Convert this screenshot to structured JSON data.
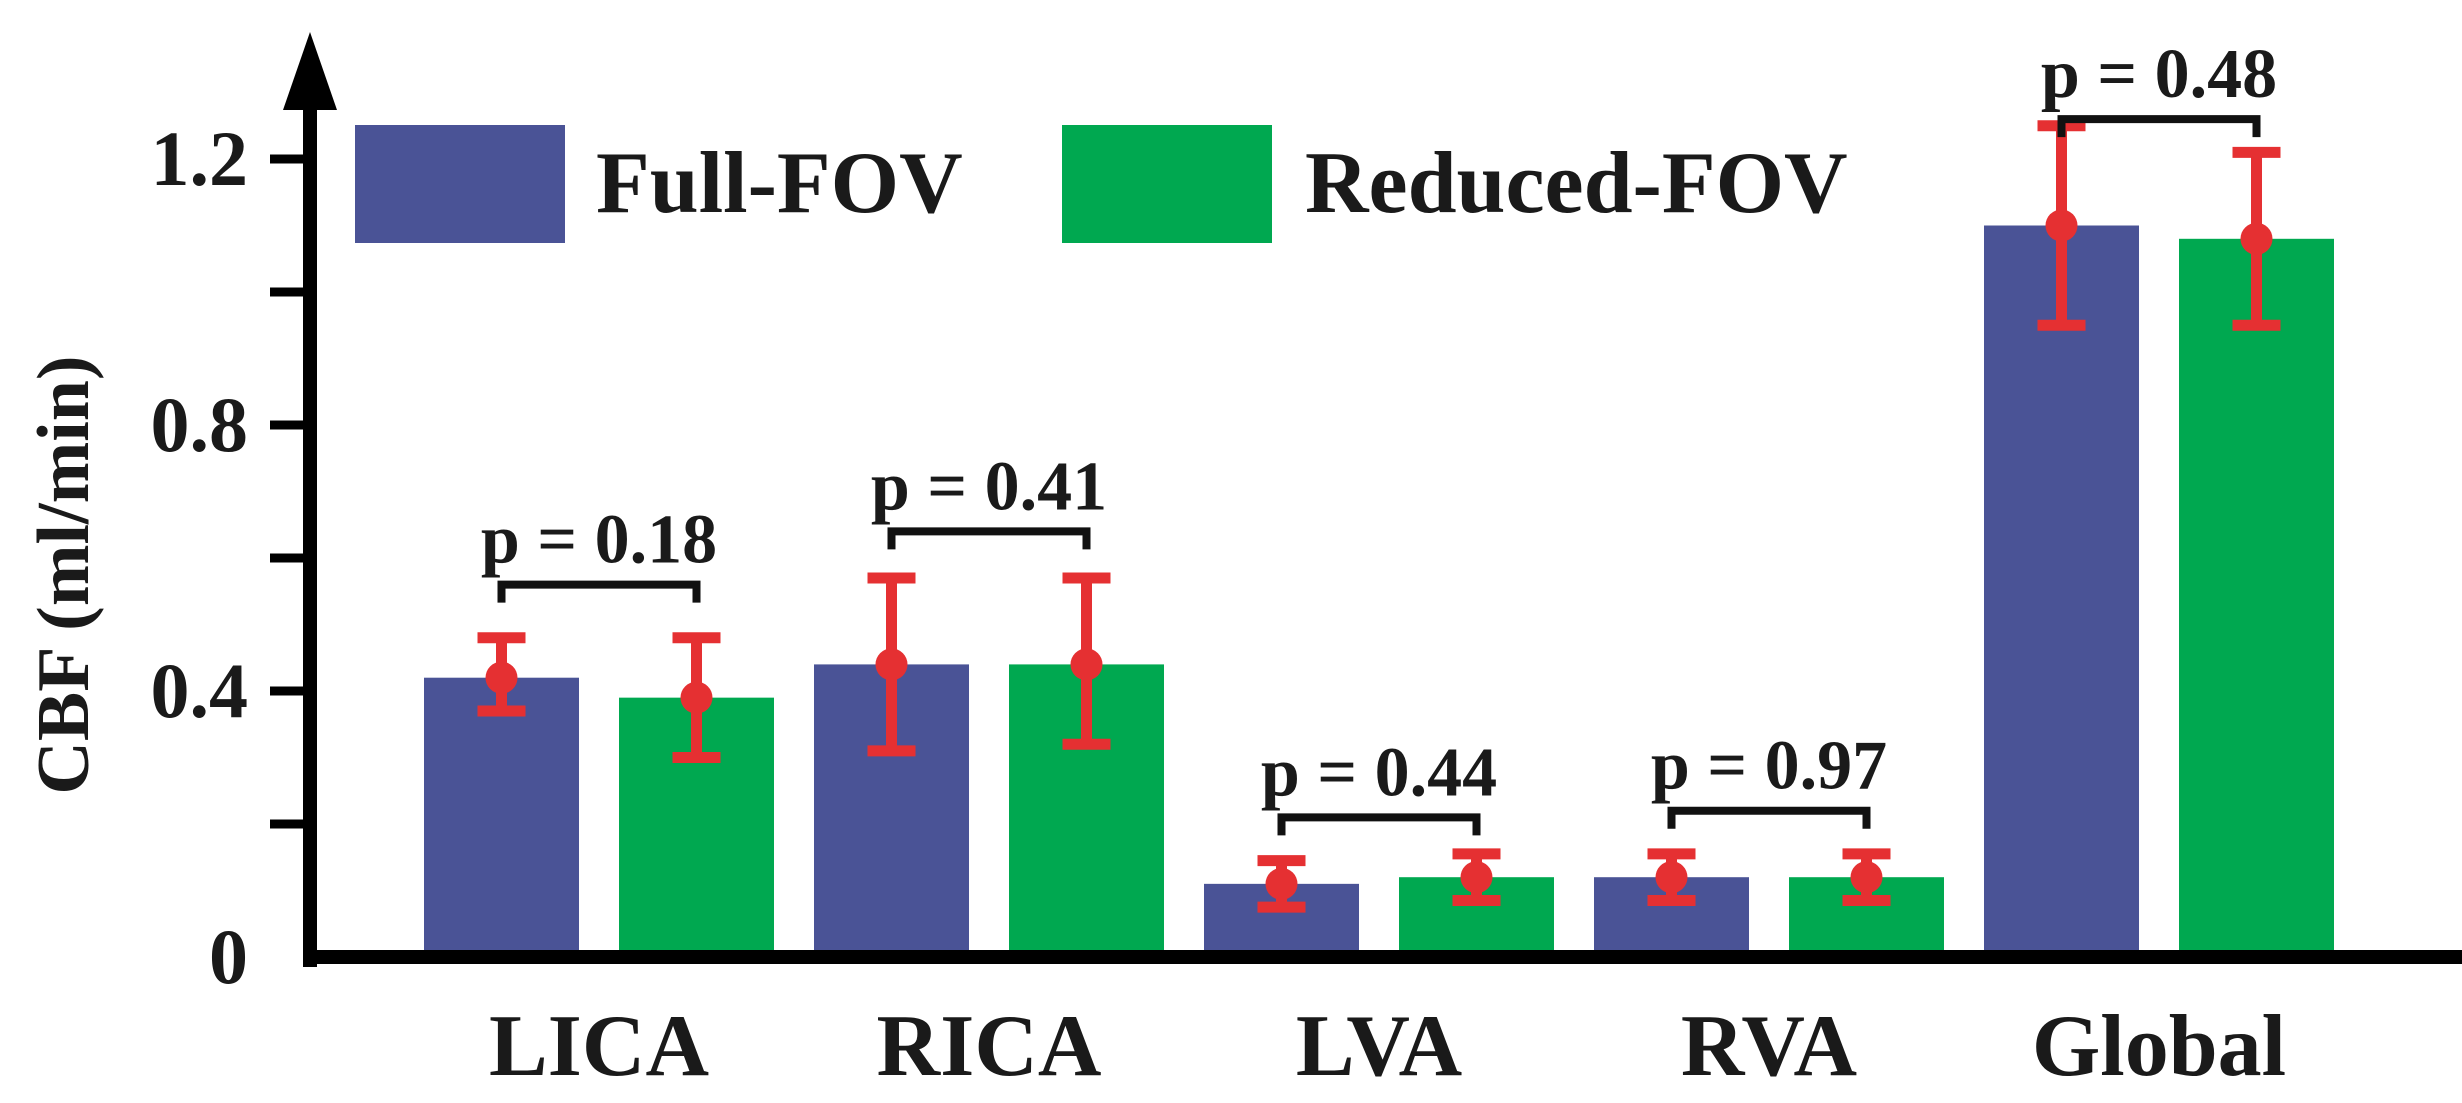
{
  "chart_data": {
    "type": "bar",
    "title": "",
    "xlabel": "",
    "ylabel": "CBF (ml/min)",
    "ylim": [
      0,
      1.3
    ],
    "yticks": [
      0,
      0.4,
      0.8,
      1.2
    ],
    "ytick_labels": [
      "0",
      "0.4",
      "0.8",
      "1.2"
    ],
    "categories": [
      "LICA",
      "RICA",
      "LVA",
      "RVA",
      "Global"
    ],
    "series": [
      {
        "name": "Full-FOV",
        "color": "#4a5396",
        "values": [
          0.42,
          0.44,
          0.11,
          0.12,
          1.1
        ],
        "err_low": [
          0.05,
          0.13,
          0.035,
          0.035,
          0.15
        ],
        "err_high": [
          0.06,
          0.13,
          0.035,
          0.035,
          0.15
        ]
      },
      {
        "name": "Reduced-FOV",
        "color": "#00a850",
        "values": [
          0.39,
          0.44,
          0.12,
          0.12,
          1.08
        ],
        "err_low": [
          0.09,
          0.12,
          0.035,
          0.035,
          0.13
        ],
        "err_high": [
          0.09,
          0.13,
          0.035,
          0.035,
          0.13
        ]
      }
    ],
    "error_bar_color": "#e53032",
    "annotations": [
      {
        "category": "LICA",
        "label": "p = 0.18",
        "level": 0.56
      },
      {
        "category": "RICA",
        "label": "p = 0.41",
        "level": 0.64
      },
      {
        "category": "LVA",
        "label": "p = 0.44",
        "level": 0.21
      },
      {
        "category": "RVA",
        "label": "p = 0.97",
        "level": 0.22
      },
      {
        "category": "Global",
        "label": "p = 0.48",
        "level": 1.26
      }
    ],
    "legend": {
      "position": "top-left",
      "entries": [
        "Full-FOV",
        "Reduced-FOV"
      ]
    }
  }
}
